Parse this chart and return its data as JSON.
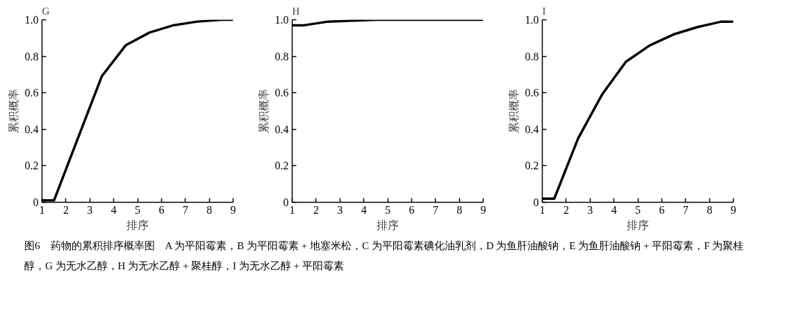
{
  "chart_data": [
    {
      "type": "line",
      "title": "G",
      "xlabel": "排序",
      "ylabel": "累积概率",
      "x": [
        1,
        1.5,
        2.5,
        3.5,
        4.5,
        5.5,
        6.5,
        7.5,
        8.5,
        9
      ],
      "series": [
        {
          "color": "#000000",
          "values": [
            0.01,
            0.01,
            0.35,
            0.69,
            0.86,
            0.93,
            0.97,
            0.99,
            1.0,
            1.0
          ]
        }
      ],
      "xlim": [
        1,
        9
      ],
      "ylim": [
        0,
        1.0
      ],
      "xticks": [
        1,
        2,
        3,
        4,
        5,
        6,
        7,
        8,
        9
      ],
      "yticks": [
        0,
        {
          "value": 0.2,
          "label": "0.2"
        },
        {
          "value": 0.4,
          "label": "0.4"
        },
        {
          "value": 0.6,
          "label": "0.6"
        },
        {
          "value": 0.8,
          "label": "0.8"
        },
        {
          "value": 1.0,
          "label": "1.0"
        }
      ],
      "grid": false,
      "marker": "none",
      "line_style": "solid",
      "annotations": [
        "图6　药物的累积排序概率图　A 为平阳霉素，B 为平阳霉素 + 地塞米松，C 为平阳霉素碘化油乳剂，D 为鱼肝油酸钠，E 为鱼肝油酸钠 + 平阳霉素，F 为聚桂醇，G 为无水乙醇，H 为无水乙醇 + 聚桂醇，I 为无水乙醇 + 平阳霉素"
      ]
    },
    {
      "type": "line",
      "title": "H",
      "xlabel": "排序",
      "ylabel": "累积概率",
      "x": [
        1,
        1.5,
        2.5,
        3.5,
        4.5,
        5.5,
        6.5,
        7.5,
        8.5,
        9
      ],
      "series": [
        {
          "color": "#000000",
          "values": [
            0.97,
            0.97,
            0.99,
            0.995,
            1.0,
            1.0,
            1.0,
            1.0,
            1.0,
            1.0
          ]
        }
      ],
      "xlim": [
        1,
        9
      ],
      "ylim": [
        0,
        1.0
      ],
      "xticks": [
        1,
        2,
        3,
        4,
        5,
        6,
        7,
        8,
        9
      ],
      "yticks": [
        0,
        {
          "value": 0.2,
          "label": "0.2"
        },
        {
          "value": 0.4,
          "label": "0.4"
        },
        {
          "value": 0.6,
          "label": "0.6"
        },
        {
          "value": 0.8,
          "label": "0.8"
        },
        {
          "value": 1.0,
          "label": "1.0"
        }
      ],
      "grid": false,
      "marker": "none",
      "line_style": "solid"
    },
    {
      "type": "line",
      "title": "I",
      "xlabel": "排序",
      "ylabel": "累积概率",
      "x": [
        1,
        1.5,
        2.5,
        3.5,
        4.5,
        5.5,
        6.5,
        7.5,
        8.5,
        9
      ],
      "series": [
        {
          "color": "#000000",
          "values": [
            0.02,
            0.02,
            0.35,
            0.59,
            0.77,
            0.86,
            0.92,
            0.96,
            0.99,
            0.99
          ]
        }
      ],
      "xlim": [
        1,
        9
      ],
      "ylim": [
        0,
        1.0
      ],
      "xticks": [
        1,
        2,
        3,
        4,
        5,
        6,
        7,
        8,
        9
      ],
      "yticks": [
        0,
        {
          "value": 0.2,
          "label": "0.2"
        },
        {
          "value": 0.4,
          "label": "0.4"
        },
        {
          "value": 0.6,
          "label": "0.6"
        },
        {
          "value": 0.8,
          "label": "0.8"
        },
        {
          "value": 1.0,
          "label": "1.0"
        }
      ],
      "grid": false,
      "marker": "none",
      "line_style": "solid"
    }
  ]
}
